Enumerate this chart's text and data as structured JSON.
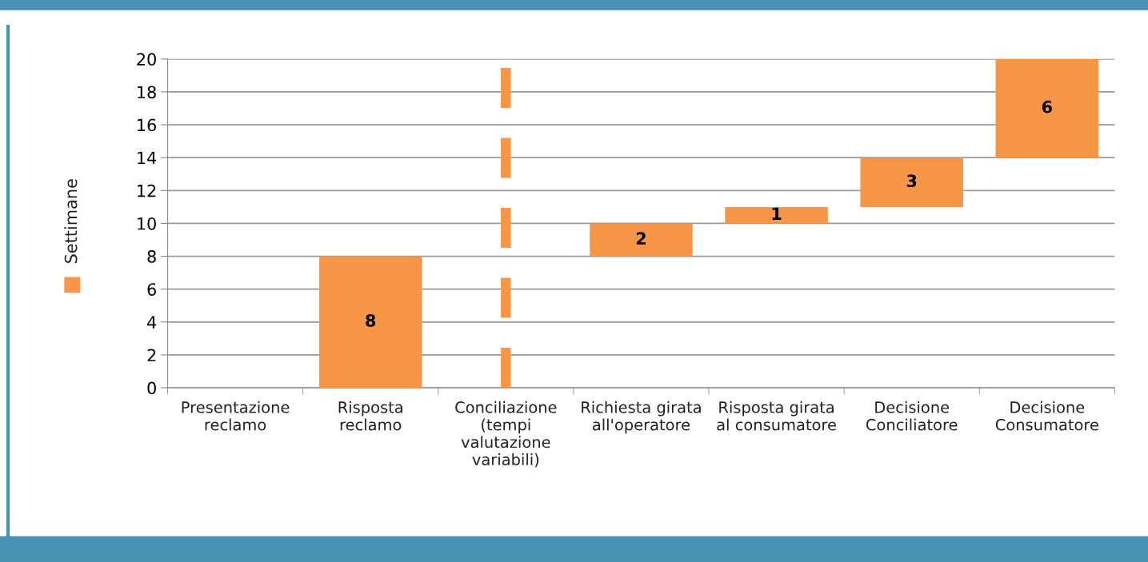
{
  "chart_data": {
    "type": "bar",
    "categories": [
      "Presentazione\nreclamo",
      "Risposta\nreclamo",
      "Conciliazione\n(tempi\nvalutazione\nvariabili)",
      "Richiesta girata\nall'operatore",
      "Risposta girata\nal consumatore",
      "Decisione\nConciliatore",
      "Decisione\nConsumatore"
    ],
    "series": [
      {
        "name": "Settimane",
        "color": "#f79646",
        "values": [
          null,
          8,
          null,
          2,
          1,
          3,
          6
        ],
        "base": [
          null,
          0,
          null,
          8,
          10,
          11,
          14
        ]
      }
    ],
    "ylim": [
      0,
      20
    ],
    "yticks": [
      0,
      2,
      4,
      6,
      8,
      10,
      12,
      14,
      16,
      18,
      20
    ],
    "grid": "y",
    "legend": "left",
    "data_labels": true,
    "ref_lines": [
      {
        "axis": "x",
        "value": "Conciliazione\n(tempi\nvalutazione\nvariabili)",
        "color": "#f79646",
        "line_style": "dashed"
      }
    ]
  }
}
